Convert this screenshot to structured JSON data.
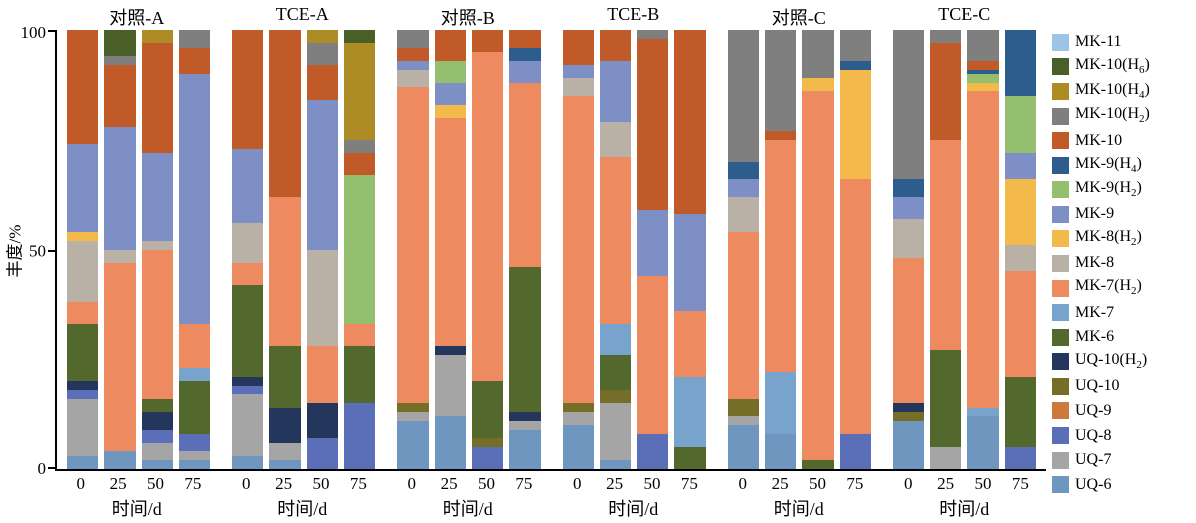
{
  "axis": {
    "ylabel": "丰度/%",
    "yticks": [
      "100",
      "50",
      "0"
    ],
    "xlabel": "时间/d"
  },
  "chart_data": {
    "type": "bar",
    "stacked": true,
    "ylim": [
      0,
      100
    ],
    "groups": [
      "对照-A",
      "TCE-A",
      "对照-B",
      "TCE-B",
      "对照-C",
      "TCE-C"
    ],
    "times": [
      "0",
      "25",
      "50",
      "75"
    ],
    "note": "values are percent abundance per bar, ordered group-major: 对照-A(0,25,50,75), TCE-A(...), 对照-B, TCE-B, 对照-C, TCE-C; series listed top-to-bottom of legend, stacked bottom-to-top in reverse order",
    "series": [
      {
        "name": "MK-11",
        "color": "#9dc3e6",
        "values": [
          0,
          0,
          0,
          0,
          0,
          0,
          0,
          0,
          0,
          0,
          0,
          0,
          0,
          0,
          0,
          0,
          0,
          0,
          0,
          0,
          0,
          0,
          0,
          0
        ]
      },
      {
        "name": "MK-10(H6)",
        "color": "#4a5e28",
        "values": [
          0,
          6,
          0,
          0,
          0,
          0,
          0,
          3,
          0,
          0,
          0,
          0,
          0,
          0,
          0,
          0,
          0,
          0,
          0,
          0,
          0,
          0,
          0,
          0
        ]
      },
      {
        "name": "MK-10(H4)",
        "color": "#ad8b25",
        "values": [
          0,
          0,
          3,
          0,
          0,
          0,
          3,
          22,
          0,
          0,
          0,
          0,
          0,
          0,
          0,
          0,
          0,
          0,
          0,
          0,
          0,
          0,
          0,
          0
        ]
      },
      {
        "name": "MK-10(H2)",
        "color": "#7f7f7f",
        "values": [
          0,
          2,
          0,
          4,
          0,
          0,
          5,
          3,
          4,
          0,
          0,
          0,
          0,
          0,
          2,
          0,
          30,
          23,
          11,
          7,
          34,
          3,
          7,
          0
        ]
      },
      {
        "name": "MK-10",
        "color": "#c05a28",
        "values": [
          26,
          14,
          25,
          6,
          27,
          38,
          8,
          5,
          3,
          7,
          5,
          4,
          8,
          7,
          39,
          42,
          0,
          2,
          0,
          0,
          0,
          22,
          2,
          0
        ]
      },
      {
        "name": "MK-9(H4)",
        "color": "#2d5d8d",
        "values": [
          0,
          0,
          0,
          0,
          0,
          0,
          0,
          0,
          0,
          0,
          0,
          3,
          0,
          0,
          0,
          0,
          4,
          0,
          0,
          2,
          4,
          0,
          1,
          15
        ]
      },
      {
        "name": "MK-9(H2)",
        "color": "#93bf6f",
        "values": [
          0,
          0,
          0,
          0,
          0,
          0,
          0,
          34,
          0,
          5,
          0,
          0,
          0,
          0,
          0,
          0,
          0,
          0,
          0,
          0,
          0,
          0,
          2,
          13
        ]
      },
      {
        "name": "MK-9",
        "color": "#7e8fc5",
        "values": [
          20,
          28,
          20,
          57,
          17,
          0,
          34,
          0,
          2,
          5,
          0,
          5,
          3,
          14,
          15,
          22,
          4,
          0,
          0,
          0,
          5,
          0,
          0,
          6
        ]
      },
      {
        "name": "MK-8(H2)",
        "color": "#f3b94a",
        "values": [
          2,
          0,
          0,
          0,
          0,
          0,
          0,
          0,
          0,
          3,
          0,
          0,
          0,
          0,
          0,
          0,
          0,
          0,
          3,
          25,
          0,
          0,
          2,
          15
        ]
      },
      {
        "name": "MK-8",
        "color": "#b9b0a6",
        "values": [
          14,
          3,
          2,
          0,
          9,
          0,
          22,
          0,
          4,
          0,
          0,
          0,
          4,
          8,
          0,
          0,
          8,
          0,
          0,
          0,
          9,
          0,
          0,
          6
        ]
      },
      {
        "name": "MK-7(H2)",
        "color": "#ee8a60",
        "values": [
          5,
          43,
          34,
          10,
          5,
          34,
          13,
          5,
          72,
          52,
          75,
          42,
          70,
          38,
          36,
          15,
          38,
          53,
          84,
          58,
          33,
          48,
          72,
          24
        ]
      },
      {
        "name": "MK-7",
        "color": "#77a3cc",
        "values": [
          0,
          0,
          0,
          3,
          0,
          0,
          0,
          0,
          0,
          0,
          0,
          0,
          0,
          7,
          0,
          16,
          0,
          14,
          0,
          0,
          0,
          0,
          2,
          0
        ]
      },
      {
        "name": "MK-6",
        "color": "#52682d",
        "values": [
          13,
          0,
          3,
          12,
          21,
          14,
          0,
          13,
          0,
          0,
          13,
          33,
          0,
          8,
          0,
          5,
          0,
          0,
          2,
          0,
          0,
          22,
          0,
          16
        ]
      },
      {
        "name": "UQ-10(H2)",
        "color": "#24365c",
        "values": [
          2,
          0,
          4,
          0,
          2,
          8,
          8,
          0,
          0,
          2,
          0,
          2,
          0,
          0,
          0,
          0,
          0,
          0,
          0,
          0,
          2,
          0,
          0,
          0
        ]
      },
      {
        "name": "UQ-10",
        "color": "#756e28",
        "values": [
          0,
          0,
          0,
          0,
          0,
          0,
          0,
          0,
          2,
          0,
          2,
          0,
          2,
          3,
          0,
          0,
          4,
          0,
          0,
          0,
          2,
          0,
          0,
          0
        ]
      },
      {
        "name": "UQ-9",
        "color": "#cc7a3c",
        "values": [
          0,
          0,
          0,
          0,
          0,
          0,
          0,
          0,
          0,
          0,
          0,
          0,
          0,
          0,
          0,
          0,
          0,
          0,
          0,
          0,
          0,
          0,
          0,
          0
        ]
      },
      {
        "name": "UQ-8",
        "color": "#5a6fb8",
        "values": [
          2,
          0,
          3,
          4,
          2,
          0,
          7,
          15,
          0,
          0,
          5,
          0,
          0,
          0,
          8,
          0,
          0,
          0,
          0,
          8,
          0,
          0,
          0,
          5
        ]
      },
      {
        "name": "UQ-7",
        "color": "#a5a5a5",
        "values": [
          13,
          0,
          4,
          2,
          14,
          4,
          0,
          0,
          2,
          14,
          0,
          2,
          3,
          13,
          0,
          0,
          2,
          0,
          0,
          0,
          0,
          5,
          0,
          0
        ]
      },
      {
        "name": "UQ-6",
        "color": "#6e96bf",
        "values": [
          3,
          4,
          2,
          2,
          3,
          2,
          0,
          0,
          11,
          12,
          0,
          9,
          10,
          2,
          0,
          0,
          10,
          8,
          0,
          0,
          11,
          0,
          12,
          0
        ]
      }
    ]
  }
}
